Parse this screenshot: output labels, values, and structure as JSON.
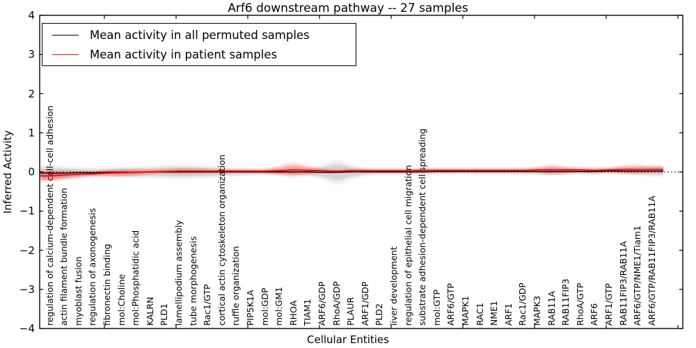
{
  "chart_data": {
    "type": "line",
    "title": "Arf6 downstream pathway -- 27 samples",
    "xlabel": "Cellular Entities",
    "ylabel": "Inferred Activity",
    "ylim": [
      -4,
      4
    ],
    "yticks": [
      4,
      3,
      2,
      1,
      0,
      -1,
      -2,
      -3,
      -4
    ],
    "ytick_labels": [
      "4",
      "3",
      "2",
      "1",
      "0",
      "−1",
      "−2",
      "−3",
      "−4"
    ],
    "grid": false,
    "zero_line": {
      "style": "dotted",
      "color": "#000000",
      "y": 0
    },
    "legend": {
      "position": "upper left",
      "items": [
        {
          "label": "Mean activity in all permuted samples",
          "color": "#000000"
        },
        {
          "label": "Mean activity in patient samples",
          "color": "#ff0000"
        }
      ]
    },
    "categories": [
      "regulation of calcium-dependent cell-cell adhesion",
      "actin filament bundle formation",
      "myoblast fusion",
      "regulation of axonogenesis",
      "fibronectin binding",
      "mol:Choline",
      "mol:Phosphatidic acid",
      "KALRN",
      "PLD1",
      "lamellipodium assembly",
      "tube morphogenesis",
      "Rac1/GTP",
      "cortical actin cytoskeleton organization",
      "ruffle organization",
      "PIP5K1A",
      "mol:GDP",
      "mol:GM1",
      "RHOA",
      "TIAM1",
      "ARF6/GDP",
      "RhoA/GDP",
      "PLAUR",
      "ARF1/GDP",
      "PLD2",
      "liver development",
      "regulation of epithelial cell migration",
      "substrate adhesion-dependent cell spreading",
      "mol:GTP",
      "ARF6/GTP",
      "MAPK1",
      "RAC1",
      "NME1",
      "ARF1",
      "Rac1/GDP",
      "MAPK3",
      "RAB11A",
      "RAB11FIP3",
      "RhoA/GTP",
      "ARF6",
      "ARF1/GTP",
      "RAB11FIP3/RAB11A",
      "ARF6/GTP/NME1/Tiam1",
      "ARF6/GTP/RAB11FIP3/RAB11A"
    ],
    "series": [
      {
        "name": "Mean activity in all permuted samples",
        "color": "#000000",
        "values": [
          -0.03,
          -0.03,
          -0.02,
          -0.02,
          -0.01,
          -0.01,
          -0.01,
          0.0,
          0.0,
          0.0,
          0.0,
          0.0,
          0.0,
          0.0,
          0.0,
          0.0,
          0.0,
          0.0,
          0.0,
          -0.01,
          -0.01,
          0.0,
          0.0,
          0.0,
          0.0,
          0.0,
          0.0,
          0.01,
          0.01,
          0.01,
          0.01,
          0.01,
          0.01,
          0.01,
          0.01,
          0.01,
          0.01,
          0.01,
          0.01,
          0.02,
          0.02,
          0.02,
          0.02
        ]
      },
      {
        "name": "Mean activity in patient samples",
        "color": "#ff0000",
        "values": [
          -0.1,
          -0.08,
          -0.06,
          -0.05,
          -0.03,
          -0.02,
          -0.01,
          0.0,
          0.01,
          0.02,
          0.02,
          0.02,
          0.02,
          0.02,
          0.02,
          0.02,
          0.03,
          0.05,
          0.04,
          0.03,
          0.02,
          0.03,
          0.03,
          0.03,
          0.03,
          0.03,
          0.04,
          0.04,
          0.04,
          0.04,
          0.04,
          0.04,
          0.04,
          0.04,
          0.05,
          0.05,
          0.05,
          0.05,
          0.04,
          0.05,
          0.06,
          0.06,
          0.06
        ]
      }
    ],
    "bands": [
      {
        "name": "permuted samples spread",
        "follows_series": 0,
        "fill_color": "rgba(0,0,0,0.12)",
        "half_widths": [
          0.13,
          0.11,
          0.09,
          0.08,
          0.07,
          0.08,
          0.09,
          0.1,
          0.11,
          0.12,
          0.11,
          0.1,
          0.09,
          0.07,
          0.06,
          0.05,
          0.05,
          0.06,
          0.07,
          0.12,
          0.2,
          0.13,
          0.07,
          0.05,
          0.05,
          0.05,
          0.06,
          0.05,
          0.05,
          0.04,
          0.05,
          0.05,
          0.05,
          0.06,
          0.06,
          0.07,
          0.06,
          0.05,
          0.06,
          0.05,
          0.06,
          0.07,
          0.09
        ]
      },
      {
        "name": "patient samples spread",
        "follows_series": 1,
        "fill_color": "rgba(255,0,0,0.25)",
        "half_widths": [
          0.1,
          0.08,
          0.06,
          0.04,
          0.06,
          0.07,
          0.06,
          0.04,
          0.04,
          0.05,
          0.05,
          0.04,
          0.03,
          0.03,
          0.03,
          0.04,
          0.08,
          0.12,
          0.08,
          0.04,
          0.03,
          0.03,
          0.03,
          0.03,
          0.03,
          0.03,
          0.03,
          0.03,
          0.03,
          0.03,
          0.03,
          0.03,
          0.03,
          0.03,
          0.05,
          0.08,
          0.06,
          0.04,
          0.04,
          0.04,
          0.07,
          0.08,
          0.06
        ]
      }
    ]
  }
}
